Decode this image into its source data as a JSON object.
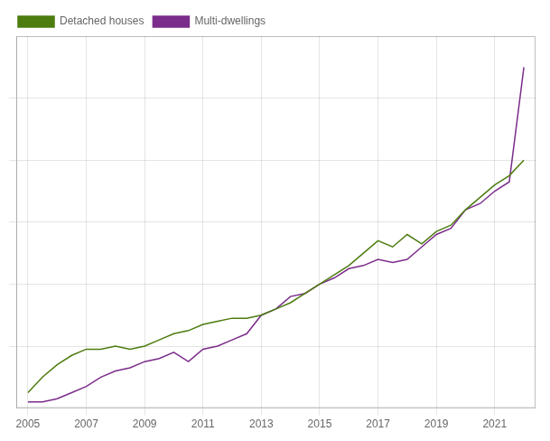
{
  "chart_data": {
    "type": "line",
    "x": [
      2005.0,
      2005.5,
      2006.0,
      2006.5,
      2007.0,
      2007.5,
      2008.0,
      2008.5,
      2009.0,
      2009.5,
      2010.0,
      2010.5,
      2011.0,
      2011.5,
      2012.0,
      2012.5,
      2013.0,
      2013.5,
      2014.0,
      2014.5,
      2015.0,
      2015.5,
      2016.0,
      2016.5,
      2017.0,
      2017.5,
      2018.0,
      2018.5,
      2019.0,
      2019.5,
      2020.0,
      2020.5,
      2021.0,
      2021.5,
      2022.0
    ],
    "series": [
      {
        "name": "Detached houses",
        "color": "#4d7c0f",
        "values": [
          65,
          70,
          74,
          77,
          79,
          79,
          80,
          79,
          80,
          82,
          84,
          85,
          87,
          88,
          89,
          89,
          90,
          92,
          94,
          97,
          100,
          103,
          106,
          110,
          114,
          112,
          116,
          113,
          117,
          119,
          124,
          128,
          132,
          135,
          140
        ]
      },
      {
        "name": "Multi-dwellings",
        "color": "#7b2d8b",
        "values": [
          62,
          62,
          63,
          65,
          67,
          70,
          72,
          73,
          75,
          76,
          78,
          75,
          79,
          80,
          82,
          84,
          90,
          92,
          96,
          97,
          100,
          102,
          105,
          106,
          108,
          107,
          108,
          112,
          116,
          118,
          124,
          126,
          130,
          133,
          170
        ]
      }
    ],
    "xlim": [
      2004.6,
      2022.4
    ],
    "xticks": [
      2005,
      2007,
      2009,
      2011,
      2013,
      2015,
      2017,
      2019,
      2021
    ],
    "ylim": [
      60,
      180
    ],
    "yticks": [
      80,
      100,
      120,
      140,
      160
    ],
    "grid": true,
    "legend": "upper left",
    "tick_labels": "x"
  }
}
